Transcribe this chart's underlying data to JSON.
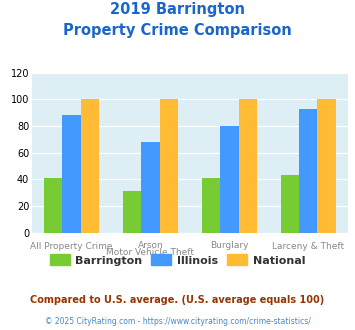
{
  "title_line1": "2019 Barrington",
  "title_line2": "Property Crime Comparison",
  "barrington": [
    41,
    31,
    41,
    43
  ],
  "illinois": [
    88,
    68,
    80,
    93
  ],
  "national": [
    100,
    100,
    100,
    100
  ],
  "bar_colors": {
    "barrington": "#77cc33",
    "illinois": "#4499ff",
    "national": "#ffbb33"
  },
  "ylim": [
    0,
    120
  ],
  "yticks": [
    0,
    20,
    40,
    60,
    80,
    100,
    120
  ],
  "legend_labels": [
    "Barrington",
    "Illinois",
    "National"
  ],
  "label_top": [
    "",
    "Arson",
    "Burglary",
    ""
  ],
  "label_bot": [
    "All Property Crime",
    "Motor Vehicle Theft",
    "",
    "Larceny & Theft"
  ],
  "footnote1": "Compared to U.S. average. (U.S. average equals 100)",
  "footnote2": "© 2025 CityRating.com - https://www.cityrating.com/crime-statistics/",
  "title_color": "#1a66cc",
  "footnote1_color": "#993300",
  "footnote2_color": "#4488cc",
  "background_color": "#ddeef5",
  "figure_background": "#ffffff",
  "grid_color": "#ffffff",
  "label_color": "#888888"
}
